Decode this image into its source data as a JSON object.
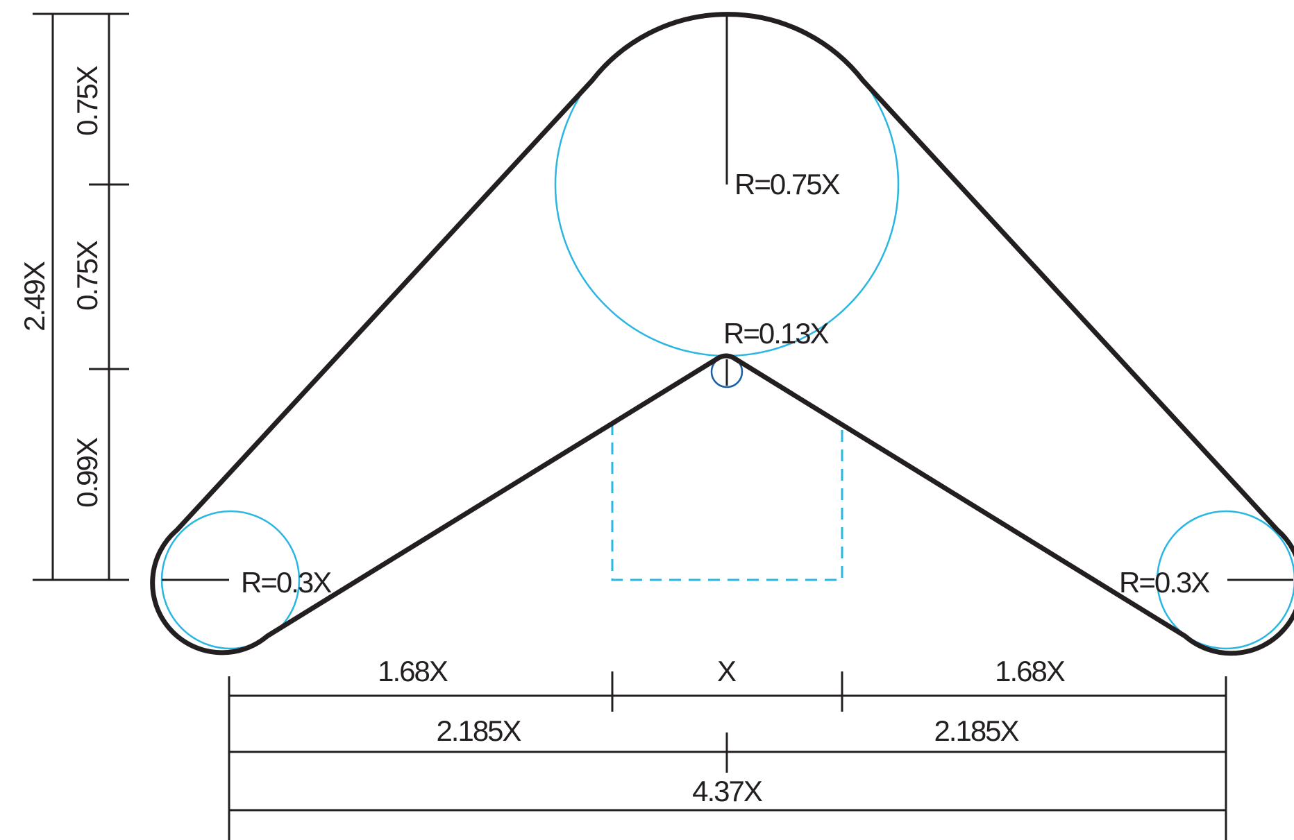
{
  "labels": {
    "radius_top": "R=0.75X",
    "radius_apex": "R=0.13X",
    "radius_left": "R=0.3X",
    "radius_right": "R=0.3X",
    "height_total": "2.49X",
    "height_upper": "0.75X",
    "height_middle": "0.75X",
    "height_lower": "0.99X",
    "width_left": "1.68X",
    "width_center": "X",
    "width_right": "1.68X",
    "half_left": "2.185X",
    "half_right": "2.185X",
    "width_total": "4.37X"
  },
  "colors": {
    "outline": "#231f20",
    "guide": "#29b6e0",
    "apex_circle": "#1c5fa3"
  }
}
